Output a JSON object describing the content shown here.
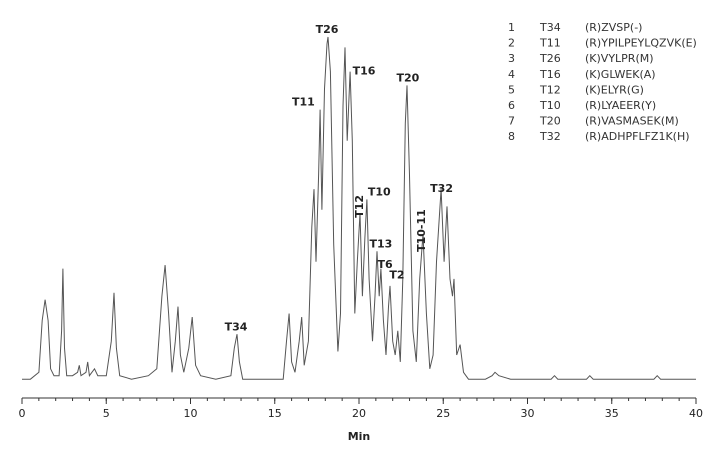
{
  "chart_data": {
    "type": "line",
    "xlabel": "Min",
    "xlim": [
      0,
      40
    ],
    "xticks": [
      0,
      5,
      10,
      15,
      20,
      25,
      30,
      35,
      40
    ],
    "ylim": [
      -3,
      100
    ],
    "color": "#555555",
    "x": [
      0,
      0.5,
      1.0,
      1.2,
      1.37,
      1.55,
      1.7,
      1.9,
      2.2,
      2.35,
      2.43,
      2.52,
      2.65,
      3.0,
      3.3,
      3.4,
      3.5,
      3.8,
      3.9,
      4.0,
      4.3,
      4.5,
      5.0,
      5.3,
      5.46,
      5.6,
      5.8,
      6.5,
      7.5,
      8.0,
      8.3,
      8.49,
      8.7,
      8.9,
      9.1,
      9.26,
      9.4,
      9.6,
      9.9,
      10.1,
      10.3,
      10.6,
      11.5,
      12.4,
      12.6,
      12.76,
      12.9,
      13.1,
      14,
      15,
      15.5,
      15.7,
      15.85,
      16.0,
      16.2,
      16.45,
      16.6,
      16.75,
      17.0,
      17.2,
      17.33,
      17.45,
      17.6,
      17.69,
      17.8,
      17.95,
      18.1,
      18.16,
      18.3,
      18.5,
      18.75,
      18.9,
      19.05,
      19.17,
      19.3,
      19.47,
      19.6,
      19.75,
      19.9,
      20.06,
      20.2,
      20.35,
      20.47,
      20.6,
      20.8,
      20.95,
      21.07,
      21.2,
      21.3,
      21.45,
      21.6,
      21.75,
      21.84,
      22.0,
      22.15,
      22.3,
      22.45,
      22.6,
      22.75,
      22.85,
      23.0,
      23.2,
      23.4,
      23.6,
      23.8,
      24.0,
      24.2,
      24.4,
      24.6,
      24.87,
      25.05,
      25.22,
      25.4,
      25.55,
      25.64,
      25.8,
      26.0,
      26.2,
      26.5,
      27.5,
      27.9,
      28.07,
      28.3,
      29,
      31.4,
      31.6,
      31.8,
      33.5,
      33.7,
      33.9,
      37.5,
      37.7,
      37.9,
      40
    ],
    "y": [
      1,
      1,
      3,
      18,
      24,
      18,
      4,
      2,
      2,
      15,
      33,
      10,
      2,
      2,
      3,
      5,
      2,
      3,
      6,
      2,
      4,
      2,
      2,
      12,
      26,
      10,
      2,
      1,
      2,
      4,
      25,
      34,
      20,
      3,
      12,
      22,
      8,
      3,
      10,
      19,
      5,
      2,
      1,
      2,
      10,
      14,
      6,
      1,
      1,
      1,
      1,
      12,
      20,
      6,
      3,
      12,
      19,
      5,
      12,
      45,
      56,
      35,
      60,
      79,
      50,
      85,
      98,
      100,
      90,
      40,
      9,
      20,
      80,
      97,
      70,
      90,
      70,
      20,
      35,
      49,
      25,
      42,
      53,
      30,
      12,
      25,
      38,
      25,
      33,
      18,
      8,
      22,
      28,
      12,
      8,
      15,
      6,
      30,
      75,
      86,
      60,
      15,
      6,
      30,
      43,
      20,
      4,
      8,
      35,
      56,
      35,
      51,
      30,
      25,
      30,
      8,
      11,
      3,
      1,
      1,
      2,
      3,
      2,
      1,
      1,
      2,
      1,
      1,
      2,
      1,
      1,
      2,
      1,
      1
    ],
    "annotations": [
      {
        "text": "T34",
        "x": 12.7,
        "y": 16,
        "angle": 0
      },
      {
        "text": "T11",
        "x": 16.7,
        "y": 81,
        "angle": 0
      },
      {
        "text": "T26",
        "x": 18.1,
        "y": 102,
        "angle": 0
      },
      {
        "text": "T16",
        "x": 20.3,
        "y": 90,
        "angle": 0
      },
      {
        "text": "T20",
        "x": 22.9,
        "y": 88,
        "angle": 0
      },
      {
        "text": "T12",
        "x": 20.06,
        "y": 51,
        "angle": -90
      },
      {
        "text": "T10",
        "x": 21.2,
        "y": 55,
        "angle": 0
      },
      {
        "text": "T13",
        "x": 21.3,
        "y": 40,
        "angle": 0
      },
      {
        "text": "T6",
        "x": 21.55,
        "y": 34,
        "angle": 0
      },
      {
        "text": "T2",
        "x": 22.25,
        "y": 31,
        "angle": 0
      },
      {
        "text": "T10-11",
        "x": 23.74,
        "y": 44,
        "angle": -90
      },
      {
        "text": "T32",
        "x": 24.9,
        "y": 56,
        "angle": 0
      }
    ],
    "peak_table": {
      "rows": [
        [
          "1",
          "T34",
          "(R)ZVSP(-)"
        ],
        [
          "2",
          "T11",
          "(R)YPILPEYLQZVK(E)"
        ],
        [
          "3",
          "T26",
          "(K)VYLPR(M)"
        ],
        [
          "4",
          "T16",
          "(K)GLWEK(A)"
        ],
        [
          "5",
          "T12",
          "(K)ELYR(G)"
        ],
        [
          "6",
          "T10",
          "(R)LYAEER(Y)"
        ],
        [
          "7",
          "T20",
          "(R)VASMASEK(M)"
        ],
        [
          "8",
          "T32",
          "(R)ADHPFLFZ1K(H)"
        ]
      ]
    }
  }
}
